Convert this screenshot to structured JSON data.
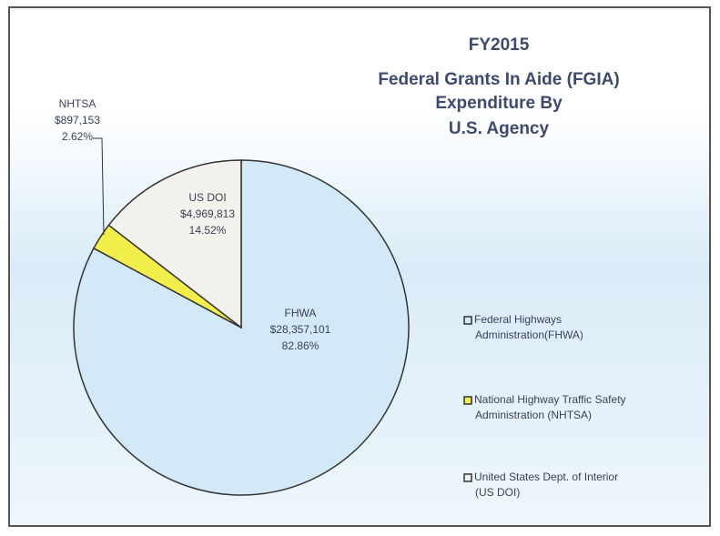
{
  "chart_data": {
    "type": "pie",
    "title": [
      "FY2015",
      "Federal Grants In Aide (FGIA)",
      "Expenditure By",
      "U.S. Agency"
    ],
    "categories": [
      "FHWA",
      "NHTSA",
      "US DOI"
    ],
    "values": [
      82.86,
      2.62,
      14.52
    ],
    "value_labels": [
      "82.86%",
      "2.62%",
      "14.52%"
    ],
    "amount_labels": [
      "$28,357,101",
      "$897,153",
      "$4,969,813"
    ],
    "colors": [
      "#d4e9f7",
      "#f2ef4c",
      "#f3f1ec"
    ],
    "legend": [
      [
        "Federal Highways",
        "Administration(FHWA)"
      ],
      [
        "National Highway Traffic Safety",
        "Administration (NHTSA)"
      ],
      [
        "United States Dept. of Interior",
        "(US DOI)"
      ]
    ]
  }
}
